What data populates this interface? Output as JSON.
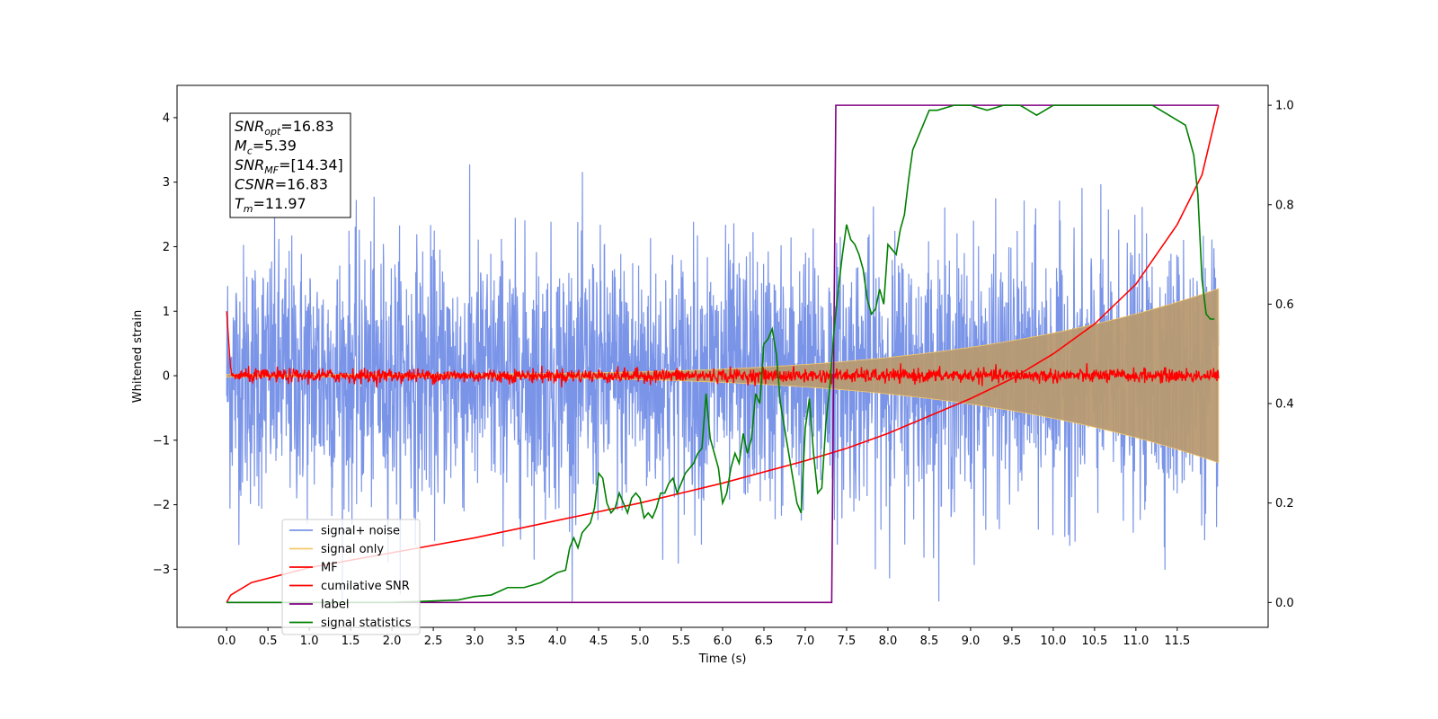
{
  "chart_data": {
    "type": "line",
    "xlabel": "Time (s)",
    "ylabel": "Whitened strain",
    "xlim": [
      -0.6,
      12.6
    ],
    "ylim_left": [
      -3.9,
      4.5
    ],
    "ylim_right": [
      -0.05,
      1.04
    ],
    "x_ticks": [
      "0.0",
      "0.5",
      "1.0",
      "1.5",
      "2.0",
      "2.5",
      "3.0",
      "3.5",
      "4.0",
      "4.5",
      "5.0",
      "5.5",
      "6.0",
      "6.5",
      "7.0",
      "7.5",
      "8.0",
      "8.5",
      "9.0",
      "9.5",
      "10.0",
      "10.5",
      "11.0",
      "11.5"
    ],
    "y_ticks_left": [
      "−3",
      "−2",
      "−1",
      "0",
      "1",
      "2",
      "3",
      "4"
    ],
    "y_ticks_right": [
      "0.0",
      "0.2",
      "0.4",
      "0.6",
      "0.8",
      "1.0"
    ],
    "grid": false,
    "legend_position": "lower-left",
    "annotation": {
      "lines": [
        {
          "var": "SNR",
          "sub": "opt",
          "value": "=16.83"
        },
        {
          "var": "M",
          "sub": "c",
          "value": "=5.39"
        },
        {
          "var": "SNR",
          "sub": "MF",
          "value": "=[14.34]"
        },
        {
          "var": "CSNR",
          "sub": "",
          "value": "=16.83"
        },
        {
          "var": "T",
          "sub": "m",
          "value": "=11.97"
        }
      ]
    },
    "series": [
      {
        "name": "signal+ noise",
        "color": "#7a94e8",
        "axis": "left",
        "description_values": {
          "x_range": [
            0.0,
            12.0
          ],
          "std_approx": 1.0,
          "min": -3.5,
          "max": 3.75
        }
      },
      {
        "name": "signal only",
        "color": "#f5c86a",
        "axis": "left",
        "description_values": {
          "x_range": [
            0.0,
            12.0
          ],
          "amplitude_start": 0.02,
          "amplitude_end": 1.35
        }
      },
      {
        "name": "MF",
        "color": "#ff0000",
        "axis": "left",
        "description_values": {
          "x_range": [
            0.0,
            12.0
          ],
          "start": 1.0,
          "baseline": 0.0,
          "noise_amplitude": 0.12
        }
      },
      {
        "name": "cumilative SNR",
        "color": "#ff0000",
        "axis": "right",
        "x": [
          0.0,
          0.05,
          0.3,
          1.0,
          2.0,
          3.0,
          4.0,
          5.0,
          6.0,
          7.0,
          7.5,
          8.0,
          8.5,
          9.0,
          9.5,
          10.0,
          10.5,
          11.0,
          11.5,
          11.8,
          12.0
        ],
        "y": [
          0.0,
          0.015,
          0.04,
          0.07,
          0.1,
          0.13,
          0.165,
          0.2,
          0.24,
          0.285,
          0.31,
          0.34,
          0.375,
          0.41,
          0.45,
          0.5,
          0.56,
          0.64,
          0.76,
          0.86,
          1.0
        ]
      },
      {
        "name": "label",
        "color": "#800080",
        "axis": "right",
        "x": [
          0.0,
          7.32,
          7.37,
          12.0
        ],
        "y": [
          0.0,
          0.0,
          1.0,
          1.0
        ]
      },
      {
        "name": "signal statistics",
        "color": "#008000",
        "axis": "right",
        "x": [
          0.0,
          0.5,
          1.0,
          1.5,
          2.0,
          2.5,
          2.8,
          3.0,
          3.2,
          3.4,
          3.6,
          3.8,
          3.9,
          4.0,
          4.1,
          4.15,
          4.2,
          4.25,
          4.3,
          4.4,
          4.45,
          4.5,
          4.55,
          4.6,
          4.65,
          4.7,
          4.75,
          4.8,
          4.85,
          4.9,
          4.95,
          5.0,
          5.05,
          5.1,
          5.15,
          5.2,
          5.25,
          5.3,
          5.35,
          5.4,
          5.45,
          5.5,
          5.55,
          5.6,
          5.65,
          5.7,
          5.75,
          5.8,
          5.85,
          5.9,
          5.95,
          6.0,
          6.05,
          6.1,
          6.15,
          6.2,
          6.25,
          6.3,
          6.35,
          6.4,
          6.45,
          6.5,
          6.55,
          6.6,
          6.65,
          6.7,
          6.75,
          6.8,
          6.85,
          6.9,
          6.95,
          7.0,
          7.05,
          7.1,
          7.15,
          7.2,
          7.25,
          7.3,
          7.35,
          7.4,
          7.45,
          7.5,
          7.55,
          7.6,
          7.65,
          7.7,
          7.75,
          7.8,
          7.85,
          7.9,
          7.95,
          8.0,
          8.05,
          8.1,
          8.15,
          8.2,
          8.25,
          8.3,
          8.4,
          8.5,
          8.6,
          8.8,
          9.0,
          9.2,
          9.4,
          9.6,
          9.8,
          10.0,
          10.2,
          10.4,
          10.6,
          10.8,
          11.0,
          11.2,
          11.4,
          11.6,
          11.7,
          11.75,
          11.8,
          11.85,
          11.9,
          11.95
        ],
        "y": [
          0.0,
          0.0,
          0.0,
          0.0,
          0.0,
          0.003,
          0.005,
          0.012,
          0.015,
          0.03,
          0.03,
          0.04,
          0.05,
          0.06,
          0.065,
          0.11,
          0.13,
          0.11,
          0.14,
          0.16,
          0.19,
          0.26,
          0.25,
          0.2,
          0.18,
          0.19,
          0.22,
          0.2,
          0.18,
          0.21,
          0.22,
          0.21,
          0.17,
          0.18,
          0.17,
          0.19,
          0.22,
          0.22,
          0.24,
          0.25,
          0.22,
          0.24,
          0.26,
          0.27,
          0.28,
          0.3,
          0.31,
          0.42,
          0.33,
          0.3,
          0.27,
          0.2,
          0.22,
          0.27,
          0.3,
          0.28,
          0.34,
          0.3,
          0.33,
          0.42,
          0.4,
          0.52,
          0.53,
          0.55,
          0.5,
          0.4,
          0.35,
          0.3,
          0.25,
          0.2,
          0.18,
          0.35,
          0.41,
          0.3,
          0.22,
          0.23,
          0.36,
          0.44,
          0.55,
          0.63,
          0.7,
          0.76,
          0.73,
          0.72,
          0.7,
          0.67,
          0.61,
          0.58,
          0.59,
          0.63,
          0.6,
          0.72,
          0.71,
          0.7,
          0.75,
          0.78,
          0.85,
          0.91,
          0.95,
          0.99,
          0.99,
          1.0,
          1.0,
          0.99,
          1.0,
          1.0,
          0.98,
          1.0,
          1.0,
          1.0,
          1.0,
          1.0,
          1.0,
          1.0,
          0.98,
          0.96,
          0.9,
          0.82,
          0.65,
          0.58,
          0.57,
          0.57
        ]
      }
    ]
  }
}
